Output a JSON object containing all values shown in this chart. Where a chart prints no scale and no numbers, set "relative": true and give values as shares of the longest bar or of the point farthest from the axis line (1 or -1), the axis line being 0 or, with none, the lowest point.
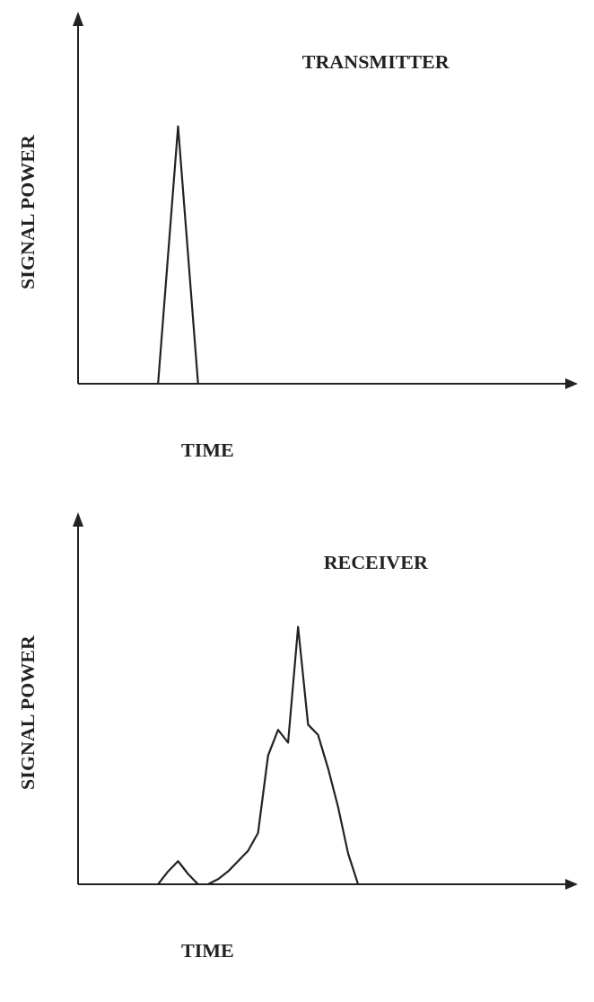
{
  "chart_data": [
    {
      "type": "line",
      "title": "TRANSMITTER",
      "xlabel": "TIME",
      "ylabel": "SIGNAL POWER",
      "relative": true,
      "legend": false,
      "marker": "none",
      "line_style": "solid",
      "categories": [
        null,
        null,
        null,
        null,
        null,
        null,
        null,
        null,
        null,
        null,
        null,
        null,
        null,
        null,
        null,
        null,
        null,
        null,
        null,
        null,
        null,
        null,
        null,
        null,
        null,
        null,
        null,
        null,
        null,
        null,
        null,
        null,
        null,
        null,
        null,
        null,
        null,
        null,
        null,
        null,
        null,
        null,
        null,
        null,
        null,
        null,
        null,
        null,
        null
      ],
      "series": [
        {
          "color": "#222222",
          "values": [
            0,
            0,
            0,
            0,
            0,
            0,
            0,
            0,
            0,
            0.5,
            1,
            0.5,
            0,
            0,
            0,
            0,
            0,
            0,
            0,
            0,
            0,
            0,
            0,
            0,
            0,
            0,
            0,
            0,
            0,
            0,
            0,
            0,
            0,
            0,
            0,
            0,
            0,
            0,
            0,
            0,
            0,
            0,
            0,
            0,
            0,
            0,
            0,
            0,
            0
          ]
        }
      ]
    },
    {
      "type": "line",
      "title": "RECEIVER",
      "xlabel": "TIME",
      "ylabel": "SIGNAL POWER",
      "relative": true,
      "legend": false,
      "marker": "none",
      "line_style": "solid",
      "categories": [
        null,
        null,
        null,
        null,
        null,
        null,
        null,
        null,
        null,
        null,
        null,
        null,
        null,
        null,
        null,
        null,
        null,
        null,
        null,
        null,
        null,
        null,
        null,
        null,
        null,
        null,
        null,
        null,
        null,
        null,
        null,
        null,
        null,
        null,
        null,
        null,
        null,
        null,
        null,
        null,
        null,
        null,
        null,
        null,
        null,
        null,
        null,
        null,
        null
      ],
      "series": [
        {
          "color": "#222222",
          "values": [
            0,
            0,
            0,
            0,
            0,
            0,
            0,
            0,
            0,
            0.05,
            0.09,
            0.04,
            0,
            0,
            0.02,
            0.05,
            0.09,
            0.13,
            0.2,
            0.5,
            0.6,
            0.55,
            1,
            0.62,
            0.58,
            0.45,
            0.3,
            0.12,
            0,
            0,
            0,
            0,
            0,
            0,
            0,
            0,
            0,
            0,
            0,
            0,
            0,
            0,
            0,
            0,
            0,
            0,
            0,
            0,
            0
          ]
        }
      ]
    }
  ]
}
